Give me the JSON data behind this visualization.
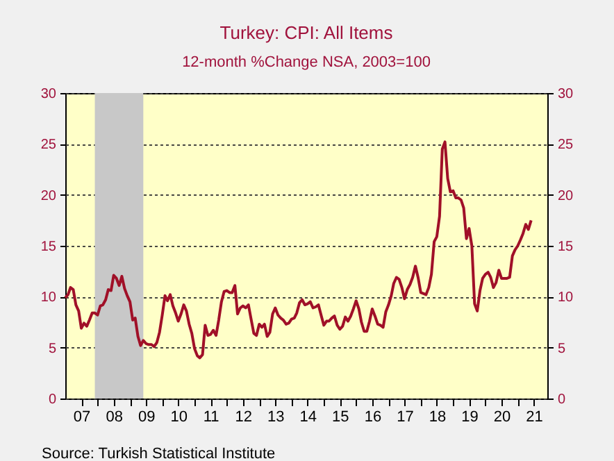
{
  "chart_data": {
    "type": "line",
    "title": "Turkey: CPI: All Items",
    "subtitle": "12-month %Change     NSA, 2003=100",
    "x": [
      "2007-01",
      "2007-02",
      "2007-03",
      "2007-04",
      "2007-05",
      "2007-06",
      "2007-07",
      "2007-08",
      "2007-09",
      "2007-10",
      "2007-11",
      "2007-12",
      "2008-01",
      "2008-02",
      "2008-03",
      "2008-04",
      "2008-05",
      "2008-06",
      "2008-07",
      "2008-08",
      "2008-09",
      "2008-10",
      "2008-11",
      "2008-12",
      "2009-01",
      "2009-02",
      "2009-03",
      "2009-04",
      "2009-05",
      "2009-06",
      "2009-07",
      "2009-08",
      "2009-09",
      "2009-10",
      "2009-11",
      "2009-12",
      "2010-01",
      "2010-02",
      "2010-03",
      "2010-04",
      "2010-05",
      "2010-06",
      "2010-07",
      "2010-08",
      "2010-09",
      "2010-10",
      "2010-11",
      "2010-12",
      "2011-01",
      "2011-02",
      "2011-03",
      "2011-04",
      "2011-05",
      "2011-06",
      "2011-07",
      "2011-08",
      "2011-09",
      "2011-10",
      "2011-11",
      "2011-12",
      "2012-01",
      "2012-02",
      "2012-03",
      "2012-04",
      "2012-05",
      "2012-06",
      "2012-07",
      "2012-08",
      "2012-09",
      "2012-10",
      "2012-11",
      "2012-12",
      "2013-01",
      "2013-02",
      "2013-03",
      "2013-04",
      "2013-05",
      "2013-06",
      "2013-07",
      "2013-08",
      "2013-09",
      "2013-10",
      "2013-11",
      "2013-12",
      "2014-01",
      "2014-02",
      "2014-03",
      "2014-04",
      "2014-05",
      "2014-06",
      "2014-07",
      "2014-08",
      "2014-09",
      "2014-10",
      "2014-11",
      "2014-12",
      "2015-01",
      "2015-02",
      "2015-03",
      "2015-04",
      "2015-05",
      "2015-06",
      "2015-07",
      "2015-08",
      "2015-09",
      "2015-10",
      "2015-11",
      "2015-12",
      "2016-01",
      "2016-02",
      "2016-03",
      "2016-04",
      "2016-05",
      "2016-06",
      "2016-07",
      "2016-08",
      "2016-09",
      "2016-10",
      "2016-11",
      "2016-12",
      "2017-01",
      "2017-02",
      "2017-03",
      "2017-04",
      "2017-05",
      "2017-06",
      "2017-07",
      "2017-08",
      "2017-09",
      "2017-10",
      "2017-11",
      "2017-12",
      "2018-01",
      "2018-02",
      "2018-03",
      "2018-04",
      "2018-05",
      "2018-06",
      "2018-07",
      "2018-08",
      "2018-09",
      "2018-10",
      "2018-11",
      "2018-12",
      "2019-01",
      "2019-02",
      "2019-03",
      "2019-04",
      "2019-05",
      "2019-06",
      "2019-07",
      "2019-08",
      "2019-09",
      "2019-10",
      "2019-11",
      "2019-12",
      "2020-01",
      "2020-02",
      "2020-03",
      "2020-04",
      "2020-05",
      "2020-06",
      "2020-07",
      "2020-08",
      "2020-09",
      "2020-10",
      "2020-11",
      "2020-12",
      "2021-01",
      "2021-02",
      "2021-03",
      "2021-04",
      "2021-05",
      "2021-06"
    ],
    "series": [
      {
        "color": "#a01028",
        "values": [
          9.9,
          10.2,
          10.9,
          10.7,
          9.2,
          8.6,
          6.9,
          7.4,
          7.1,
          7.7,
          8.4,
          8.4,
          8.2,
          9.1,
          9.2,
          9.7,
          10.7,
          10.6,
          12.1,
          11.8,
          11.1,
          12.0,
          10.8,
          10.1,
          9.5,
          7.7,
          7.9,
          6.1,
          5.2,
          5.7,
          5.4,
          5.3,
          5.3,
          5.1,
          5.5,
          6.5,
          8.2,
          10.1,
          9.6,
          10.2,
          9.1,
          8.4,
          7.6,
          8.3,
          9.2,
          8.6,
          7.3,
          6.4,
          4.9,
          4.2,
          4.0,
          4.3,
          7.2,
          6.2,
          6.3,
          6.7,
          6.2,
          7.7,
          9.5,
          10.5,
          10.6,
          10.4,
          10.4,
          11.1,
          8.3,
          8.9,
          9.1,
          8.9,
          9.2,
          7.8,
          6.4,
          6.2,
          7.3,
          7.0,
          7.3,
          6.1,
          6.5,
          8.3,
          8.9,
          8.2,
          7.9,
          7.7,
          7.3,
          7.4,
          7.8,
          7.9,
          8.4,
          9.4,
          9.7,
          9.2,
          9.3,
          9.5,
          8.9,
          9.0,
          9.2,
          8.2,
          7.2,
          7.6,
          7.6,
          7.9,
          8.1,
          7.2,
          6.8,
          7.1,
          8.0,
          7.6,
          8.1,
          8.8,
          9.6,
          8.8,
          7.5,
          6.6,
          6.6,
          7.6,
          8.8,
          8.1,
          7.3,
          7.2,
          7.0,
          8.5,
          9.2,
          10.1,
          11.3,
          11.9,
          11.7,
          10.9,
          9.8,
          10.7,
          11.2,
          11.9,
          13.0,
          11.9,
          10.4,
          10.3,
          10.2,
          10.9,
          12.2,
          15.4,
          15.9,
          17.9,
          24.5,
          25.2,
          21.6,
          20.3,
          20.4,
          19.7,
          19.7,
          19.5,
          18.7,
          15.7,
          16.7,
          15.0,
          9.3,
          8.6,
          10.6,
          11.8,
          12.2,
          12.4,
          11.9,
          10.9,
          11.4,
          12.6,
          11.8,
          11.8,
          11.8,
          11.9,
          14.0,
          14.6,
          15.0,
          15.6,
          16.2,
          17.1,
          16.6,
          17.5
        ]
      }
    ],
    "xlim": [
      "2007-01",
      "2021-12"
    ],
    "xticks": [
      {
        "value": "2007-07",
        "label": "07"
      },
      {
        "value": "2008-07",
        "label": "08"
      },
      {
        "value": "2009-07",
        "label": "09"
      },
      {
        "value": "2010-07",
        "label": "10"
      },
      {
        "value": "2011-07",
        "label": "11"
      },
      {
        "value": "2012-07",
        "label": "12"
      },
      {
        "value": "2013-07",
        "label": "13"
      },
      {
        "value": "2014-07",
        "label": "14"
      },
      {
        "value": "2015-07",
        "label": "15"
      },
      {
        "value": "2016-07",
        "label": "16"
      },
      {
        "value": "2017-07",
        "label": "17"
      },
      {
        "value": "2018-07",
        "label": "18"
      },
      {
        "value": "2019-07",
        "label": "19"
      },
      {
        "value": "2020-07",
        "label": "20"
      },
      {
        "value": "2021-07",
        "label": "21"
      },
      {
        "value": "2008-01",
        "label": null
      },
      {
        "value": "2009-01",
        "label": null
      },
      {
        "value": "2010-01",
        "label": null
      },
      {
        "value": "2011-01",
        "label": null
      },
      {
        "value": "2012-01",
        "label": null
      },
      {
        "value": "2013-01",
        "label": null
      },
      {
        "value": "2014-01",
        "label": null
      },
      {
        "value": "2015-01",
        "label": null
      },
      {
        "value": "2016-01",
        "label": null
      },
      {
        "value": "2017-01",
        "label": null
      },
      {
        "value": "2018-01",
        "label": null
      },
      {
        "value": "2019-01",
        "label": null
      },
      {
        "value": "2020-01",
        "label": null
      },
      {
        "value": "2021-01",
        "label": null
      }
    ],
    "ylim": [
      0,
      30
    ],
    "yticks": [
      0,
      5,
      10,
      15,
      20,
      25,
      30
    ],
    "y2lim": [
      0,
      30
    ],
    "y2ticks": [
      0,
      5,
      10,
      15,
      20,
      25,
      30
    ],
    "grid": "y",
    "bands": [
      {
        "axis": "x",
        "from": "2007-12",
        "to": "2009-06",
        "color": "#c8c8c8"
      }
    ],
    "annotations": [
      "Source: Turkish Statistical Institute"
    ]
  }
}
